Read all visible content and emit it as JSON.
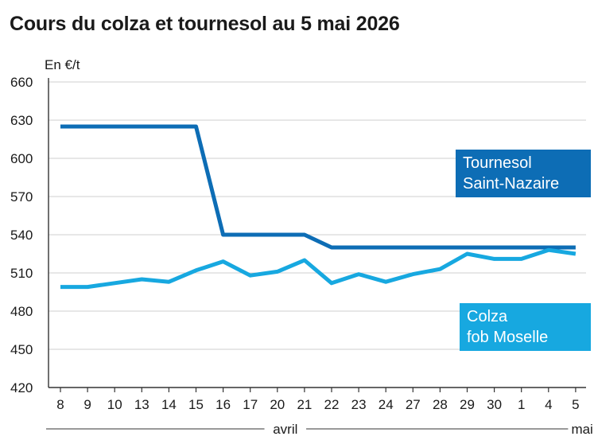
{
  "title": "Cours du colza et tournesol au 5 mai 2026",
  "colors": {
    "tournesol": "#0d6db5",
    "colza": "#17a8e0",
    "grid": "#cfcfcf",
    "axis": "#333333"
  },
  "chart_data": {
    "type": "line",
    "ylabel": "En €/t",
    "ylim": [
      420,
      660
    ],
    "yticks": [
      420,
      450,
      480,
      510,
      540,
      570,
      600,
      630,
      660
    ],
    "categories": [
      "8",
      "9",
      "10",
      "13",
      "14",
      "15",
      "16",
      "17",
      "20",
      "21",
      "22",
      "23",
      "24",
      "27",
      "28",
      "29",
      "30",
      "1",
      "4",
      "5"
    ],
    "months": [
      {
        "label": "avril",
        "from": 0,
        "to": 16
      },
      {
        "label": "mai",
        "from": 17,
        "to": 19
      }
    ],
    "grid": true,
    "series": [
      {
        "name": "Tournesol Saint-Nazaire",
        "label_lines": [
          "Tournesol",
          "Saint-Nazaire"
        ],
        "color": "#0d6db5",
        "values": [
          625,
          625,
          625,
          625,
          625,
          625,
          540,
          540,
          540,
          540,
          530,
          530,
          530,
          530,
          530,
          530,
          530,
          530,
          530,
          530
        ]
      },
      {
        "name": "Colza fob Mosele",
        "label_lines": [
          "Colza",
          "fob Moselle"
        ],
        "color": "#17a8e0",
        "values": [
          499,
          499,
          502,
          505,
          503,
          512,
          519,
          508,
          511,
          520,
          502,
          509,
          503,
          509,
          513,
          525,
          521,
          521,
          528,
          525
        ]
      }
    ]
  }
}
